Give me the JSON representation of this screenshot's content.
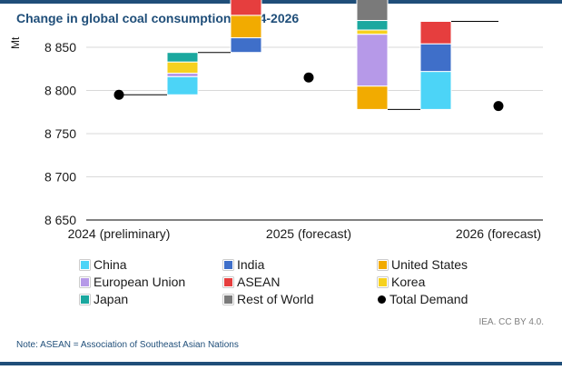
{
  "title": "Change in global coal consumption, 2024-2026",
  "source": "IEA. CC BY 4.0.",
  "note": "Note: ASEAN = Association of Southeast Asian Nations",
  "colors": {
    "China": "#4cd4f7",
    "India": "#3f6fc9",
    "United States": "#f2ab00",
    "European Union": "#b699e8",
    "ASEAN": "#e63e3e",
    "Korea": "#f6d11f",
    "Japan": "#1ba89f",
    "Rest of World": "#7a7a7a",
    "Total Demand": "#000000",
    "brand": "#1f4e79"
  },
  "chart_data": {
    "type": "waterfall",
    "ylabel": "Mt",
    "ylim": [
      8650,
      8850
    ],
    "yticks": [
      8650,
      8700,
      8750,
      8800,
      8850
    ],
    "ytick_labels": [
      "8 650",
      "8 700",
      "8 750",
      "8 800",
      "8 850"
    ],
    "x_labels": [
      "2024 (preliminary)",
      "2025 (forecast)",
      "2026 (forecast)"
    ],
    "totals": [
      {
        "label": "2024 (preliminary)",
        "value": 8795
      },
      {
        "label": "2025 (forecast)",
        "value": 8815
      },
      {
        "label": "2026 (forecast)",
        "value": 8782
      }
    ],
    "steps": [
      {
        "period": "2024-2025",
        "segments": [
          {
            "name": "China",
            "value": 21
          },
          {
            "name": "European Union",
            "value": 4
          },
          {
            "name": "Korea",
            "value": 13
          },
          {
            "name": "Japan",
            "value": 11
          }
        ]
      },
      {
        "period": "2024-2025",
        "segments": [
          {
            "name": "India",
            "value": 17
          },
          {
            "name": "United States",
            "value": 26
          },
          {
            "name": "ASEAN",
            "value": 26
          }
        ]
      },
      {
        "period": "2025-2026",
        "segments": [
          {
            "name": "Rest of World",
            "value": -32
          },
          {
            "name": "Japan",
            "value": -11
          },
          {
            "name": "Korea",
            "value": -5
          },
          {
            "name": "European Union",
            "value": -60
          },
          {
            "name": "United States",
            "value": -27
          }
        ]
      },
      {
        "period": "2025-2026",
        "segments": [
          {
            "name": "China",
            "value": 44
          },
          {
            "name": "India",
            "value": 32
          },
          {
            "name": "ASEAN",
            "value": 26
          }
        ]
      }
    ],
    "legend": [
      "China",
      "India",
      "United States",
      "European Union",
      "ASEAN",
      "Korea",
      "Japan",
      "Rest of World",
      "Total Demand"
    ],
    "legend_kinds": [
      "swatch",
      "swatch",
      "swatch",
      "swatch",
      "swatch",
      "swatch",
      "swatch",
      "swatch",
      "dot"
    ],
    "grid": true,
    "legend_position": "bottom"
  }
}
